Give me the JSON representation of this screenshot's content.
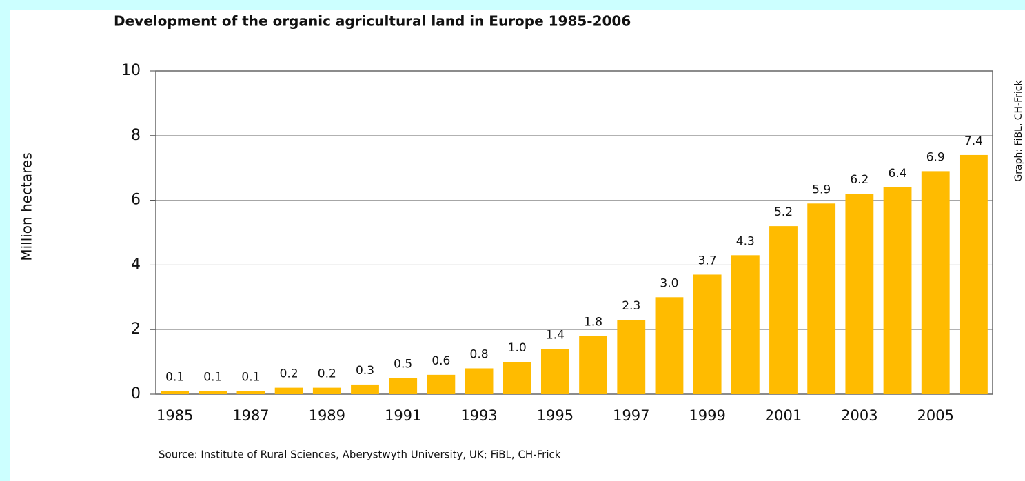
{
  "chart_data": {
    "type": "bar",
    "title": "Development of the organic agricultural land in Europe 1985-2006",
    "y_label": "Million hectares",
    "source": "Source: Institute of Rural Sciences, Aberystwyth University, UK; FiBL, CH-Frick",
    "credit": "Graph: FiBL, CH-Frick",
    "categories": [
      "1985",
      null,
      "1987",
      null,
      "1989",
      null,
      "1991",
      null,
      "1993",
      null,
      "1995",
      null,
      "1997",
      null,
      "1999",
      null,
      "2001",
      null,
      "2003",
      null,
      "2005",
      null
    ],
    "values": [
      0.1,
      0.1,
      0.1,
      0.2,
      0.2,
      0.3,
      0.5,
      0.6,
      0.8,
      1.0,
      1.4,
      1.8,
      2.3,
      3.0,
      3.7,
      4.3,
      5.2,
      5.9,
      6.2,
      6.4,
      6.9,
      7.4
    ],
    "value_labels": [
      "0.1",
      "0.1",
      "0.1",
      "0.2",
      "0.2",
      "0.3",
      "0.5",
      "0.6",
      "0.8",
      "1.0",
      "1.4",
      "1.8",
      "2.3",
      "3.0",
      "3.7",
      "4.3",
      "5.2",
      "5.9",
      "6.2",
      "6.4",
      "6.9",
      "7.4"
    ],
    "color": "#ffbb00",
    "ylim": [
      0,
      10
    ],
    "yticks": [
      0,
      2,
      4,
      6,
      8,
      10
    ],
    "grid": true
  }
}
